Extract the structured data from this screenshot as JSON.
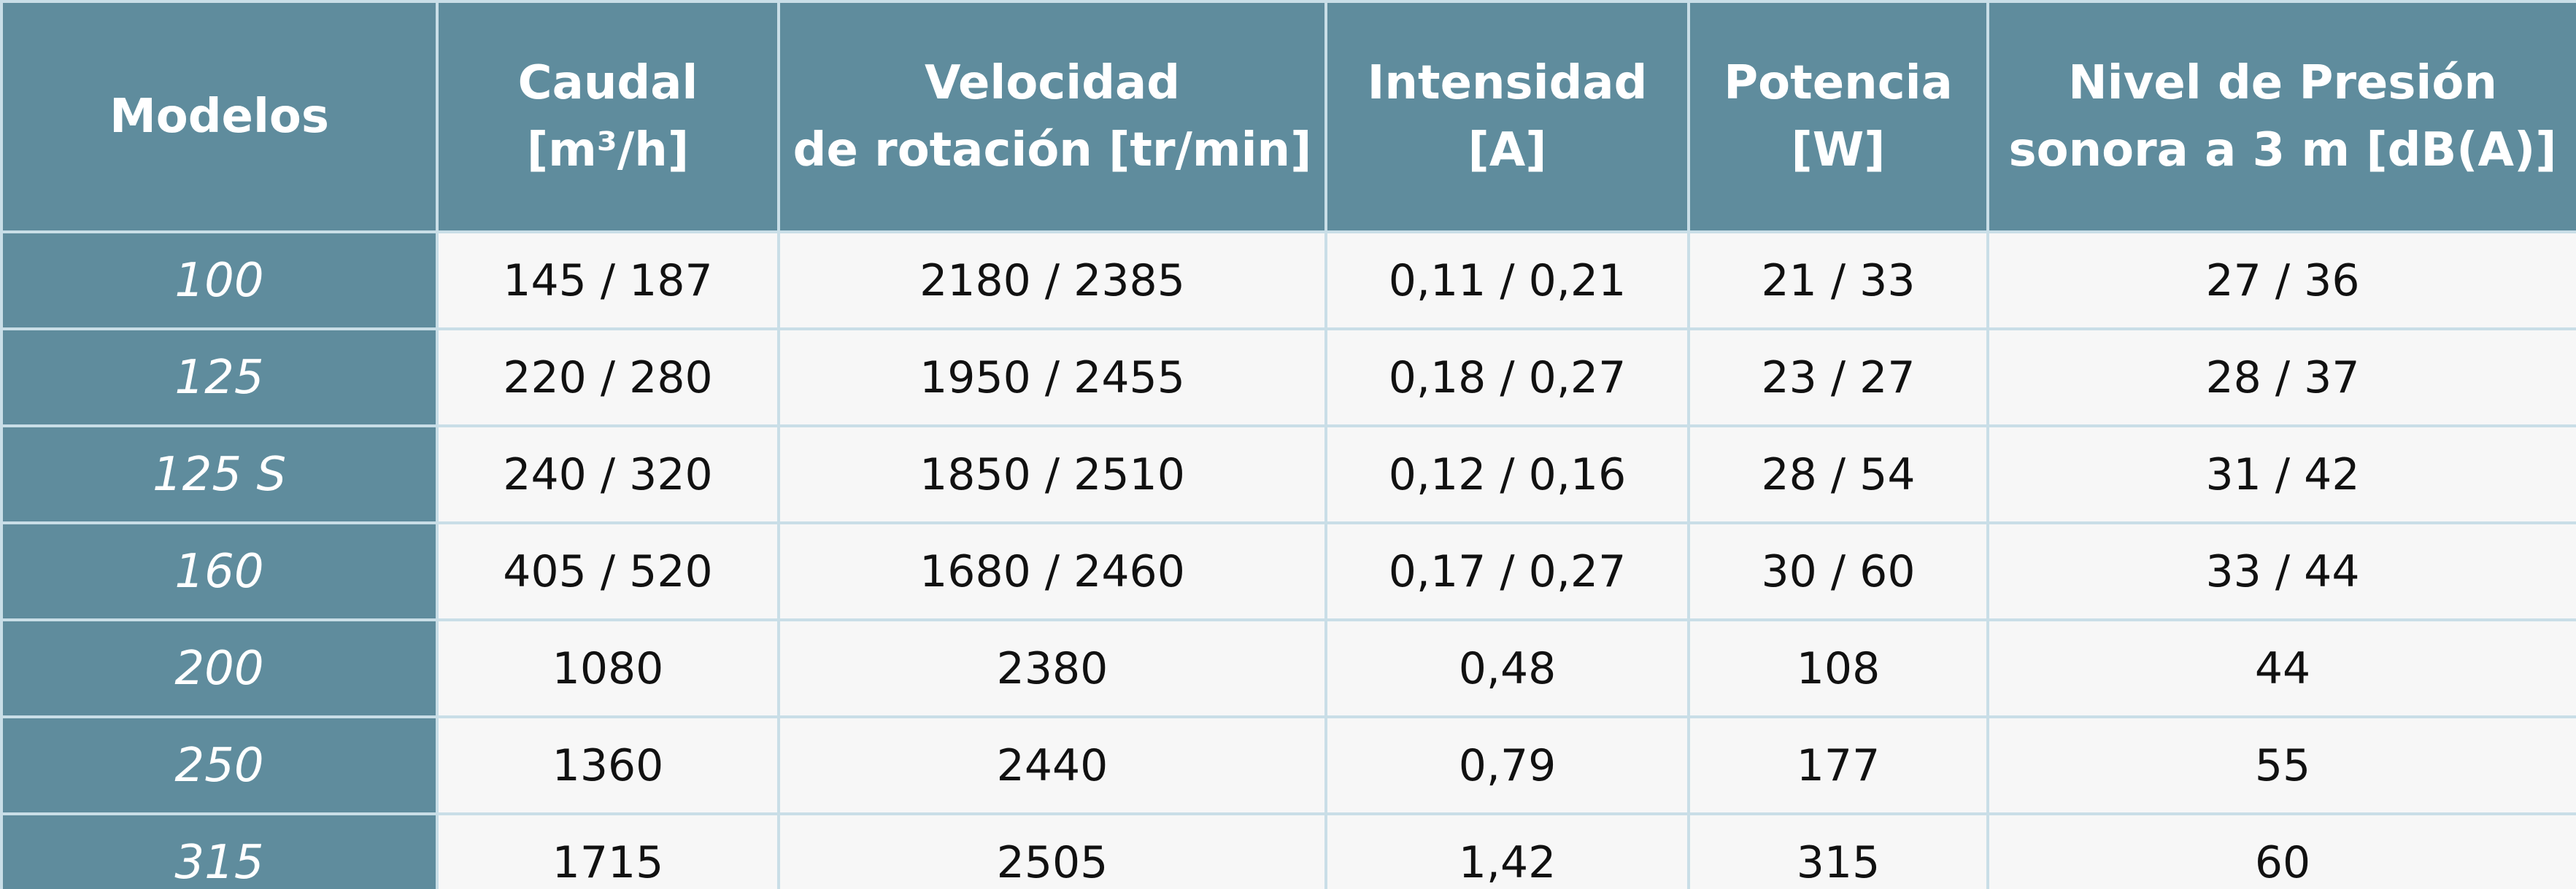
{
  "table": {
    "header": [
      [
        "Modelos"
      ],
      [
        "Caudal",
        "[m³/h]"
      ],
      [
        "Velocidad",
        "de rotación [tr/min]"
      ],
      [
        "Intensidad",
        "[A]"
      ],
      [
        "Potencia",
        "[W]"
      ],
      [
        "Nivel de Presión",
        "sonora a 3 m [dB(A)]"
      ]
    ],
    "rows": [
      [
        "100",
        "145 / 187",
        "2180 / 2385",
        "0,11 / 0,21",
        "21 / 33",
        "27 / 36"
      ],
      [
        "125",
        "220 / 280",
        "1950 / 2455",
        "0,18 / 0,27",
        "23 / 27",
        "28 / 37"
      ],
      [
        "125 S",
        "240 / 320",
        "1850 / 2510",
        "0,12 / 0,16",
        "28 / 54",
        "31 / 42"
      ],
      [
        "160",
        "405 / 520",
        "1680 / 2460",
        "0,17 / 0,27",
        "30 / 60",
        "33 / 44"
      ],
      [
        "200",
        "1080",
        "2380",
        "0,48",
        "108",
        "44"
      ],
      [
        "250",
        "1360",
        "2440",
        "0,79",
        "177",
        "55"
      ],
      [
        "315",
        "1715",
        "2505",
        "1,42",
        "315",
        "60"
      ]
    ]
  }
}
